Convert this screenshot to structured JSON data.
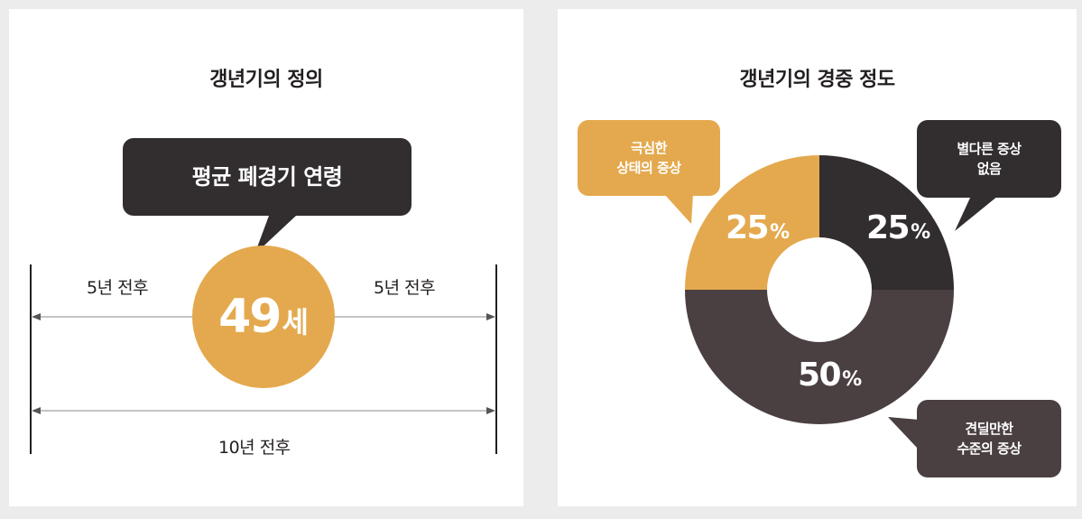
{
  "left_panel": {
    "title": "갱년기의 정의",
    "callout": "평균 폐경기 연령",
    "age_value": "49",
    "age_unit": "세",
    "left_span_label": "5년 전후",
    "right_span_label": "5년 전후",
    "total_span_label": "10년 전후"
  },
  "right_panel": {
    "title": "갱년기의 경중 정도",
    "callouts": {
      "severe_line1": "극심한",
      "severe_line2": "상태의 증상",
      "none_line1": "별다른 증상",
      "none_line2": "없음",
      "tolerable_line1": "견딜만한",
      "tolerable_line2": "수준의 증상"
    }
  },
  "colors": {
    "accent_orange": "#e4a94e",
    "dark": "#322d2e",
    "dark_mid": "#4a3f41"
  },
  "chart_data": {
    "type": "pie",
    "donut": true,
    "title": "갱년기의 경중 정도",
    "slices": [
      {
        "label": "별다른 증상 없음",
        "value": 25,
        "display": "25",
        "color": "#322d2e"
      },
      {
        "label": "견딜만한 수준의 증상",
        "value": 50,
        "display": "50",
        "color": "#4a3f41"
      },
      {
        "label": "극심한 상태의 증상",
        "value": 25,
        "display": "25",
        "color": "#e4a94e"
      }
    ],
    "percent_sign": "%"
  }
}
